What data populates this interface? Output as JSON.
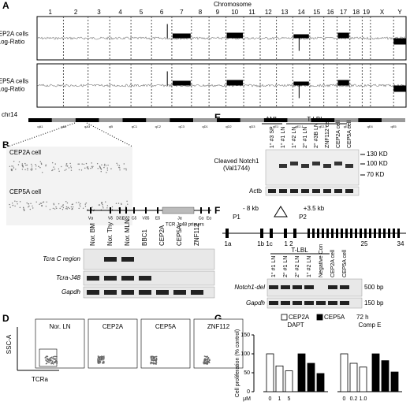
{
  "panel_labels": [
    "A",
    "B",
    "C",
    "D",
    "E",
    "F",
    "G"
  ],
  "panel_a": {
    "title": "Chromosome",
    "chromosomes": [
      "1",
      "2",
      "3",
      "4",
      "5",
      "6",
      "7",
      "8",
      "9",
      "10",
      "11",
      "12",
      "13",
      "14",
      "15",
      "16",
      "17",
      "18",
      "19",
      "X",
      "Y"
    ],
    "tracks": [
      [
        "CEP2A cells",
        "Log-Ratio"
      ],
      [
        "CEP5A cells",
        "Log-Ratio"
      ]
    ]
  },
  "chr14": {
    "label": "chr14",
    "bands": [
      "qA1",
      "qA2",
      "qA3",
      "qB",
      "qC1",
      "qC2",
      "qC3",
      "qD1",
      "qD2",
      "qD3",
      "qE1",
      "qE2.1",
      "qE2.3",
      "qE3",
      "qE4",
      "qE5"
    ]
  },
  "panel_b": {
    "samples": [
      "CEP2A cell",
      "CEP5A cell"
    ]
  },
  "panel_c": {
    "gene_labels": [
      "Vα",
      "Vδ",
      "Dδ1",
      "Dδ2",
      "Cδ",
      "Vδ5",
      "Eδ",
      "Jα",
      "Cα",
      "Eα"
    ],
    "primer_label": "TCR Jα48 primers",
    "lanes": [
      "Nor. BM",
      "Nor. Thy",
      "Nor. MLN",
      "BBC1",
      "CEP2A",
      "CEP5A",
      "ZNF112"
    ],
    "rows": [
      "Tcra C region",
      "Tcra-J48",
      "Gapdh"
    ]
  },
  "panel_d": {
    "samples": [
      "Nor. LN",
      "CEP2A",
      "CEP5A",
      "ZNF112"
    ],
    "y_label": "SSC-A",
    "x_label": "TCRa"
  },
  "panel_e": {
    "groups": [
      "AML",
      "T-LBL"
    ],
    "lanes": [
      "1° #3 SP",
      "1° #1 LN",
      "1° #2 LN",
      "2° #1 LN",
      "2° #3B LN",
      "ZNF112 cell",
      "CEP2A cell",
      "CEP5A cell"
    ],
    "target": [
      "Cleaved Notch1",
      "(Val1744)"
    ],
    "loading": "Actb",
    "markers": [
      "130 KD",
      "100 KD",
      "70 KD"
    ]
  },
  "panel_f": {
    "map_labels": [
      "- 8 kb",
      "P1",
      "+3.5 kb",
      "P2"
    ],
    "exons": [
      "1a",
      "1b 1c",
      "1 2",
      "25",
      "34"
    ],
    "group": "T-LBL",
    "lanes": [
      "1° #1 LN",
      "2° #1 LN",
      "2° #2 LN",
      "1° #2 LN",
      "Negative Con",
      "CEP2A cell",
      "CEP5A cell"
    ],
    "rows": [
      "Notch1-del",
      "Gapdh"
    ],
    "sizes": [
      "500 bp",
      "150 bp"
    ]
  },
  "panel_g": {
    "chart_data": {
      "type": "bar",
      "y_label": "Cell proliferation (% control)",
      "time": "72 h",
      "unit": "μM",
      "groups": [
        {
          "name": "DAPT",
          "doses": [
            "0",
            "1",
            "5"
          ]
        },
        {
          "name": "Comp E",
          "doses": [
            "0",
            "0.2",
            "1.0"
          ]
        }
      ],
      "series": [
        {
          "name": "CEP2A",
          "color": "#ffffff",
          "values": [
            100,
            68,
            55,
            100,
            75,
            65
          ]
        },
        {
          "name": "CEP5A",
          "color": "#000000",
          "values": [
            100,
            75,
            48,
            100,
            82,
            52
          ]
        }
      ],
      "ylim": [
        0,
        150
      ],
      "yticks": [
        0,
        50,
        100,
        150
      ]
    }
  }
}
